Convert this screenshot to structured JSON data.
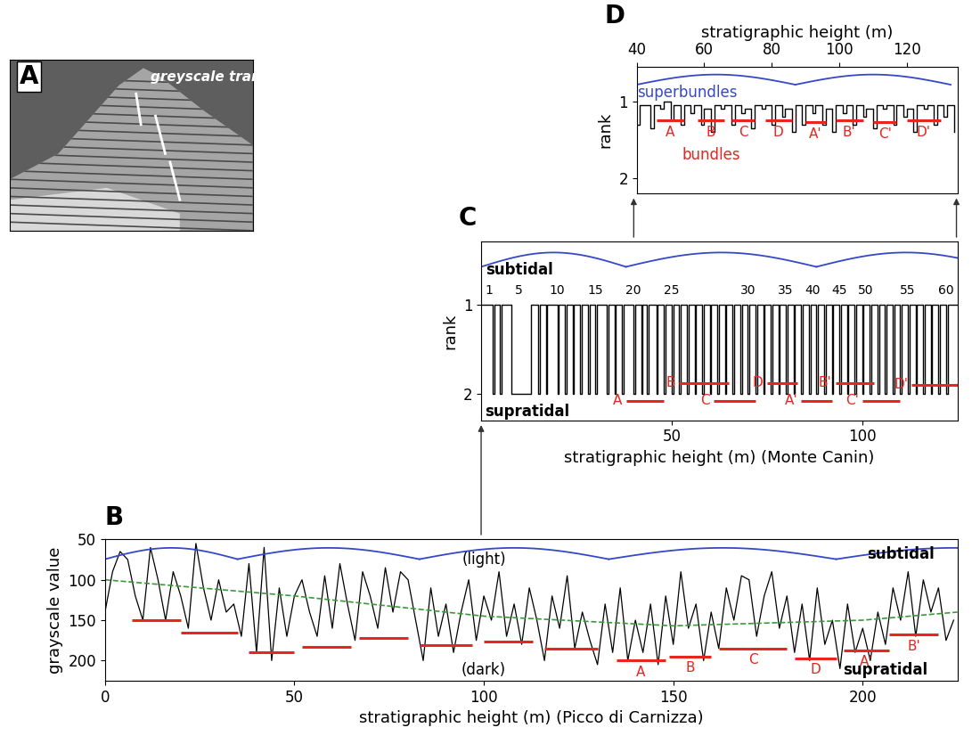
{
  "chart_data": [
    {
      "type": "image",
      "title": "A",
      "annotations": [
        {
          "text": "greyscale transects"
        }
      ]
    },
    {
      "type": "line",
      "title": "B",
      "xlabel": "stratigraphic height (m) (Picco di Carnizza)",
      "ylabel": "grayscale value",
      "xlim": [
        0,
        225
      ],
      "ylim": [
        225,
        50
      ],
      "xticks": [
        0,
        50,
        100,
        150,
        200
      ],
      "yticks": [
        50,
        100,
        150,
        200
      ],
      "color": "#000000",
      "x": [
        0,
        2,
        4,
        6,
        8,
        10,
        12,
        14,
        16,
        18,
        20,
        22,
        24,
        26,
        28,
        30,
        32,
        34,
        36,
        38,
        40,
        42,
        44,
        46,
        48,
        50,
        52,
        54,
        56,
        58,
        60,
        62,
        64,
        66,
        68,
        70,
        72,
        74,
        76,
        78,
        80,
        82,
        84,
        86,
        88,
        90,
        92,
        94,
        96,
        98,
        100,
        102,
        104,
        106,
        108,
        110,
        112,
        114,
        116,
        118,
        120,
        122,
        124,
        126,
        128,
        130,
        132,
        134,
        136,
        138,
        140,
        142,
        144,
        146,
        148,
        150,
        152,
        154,
        156,
        158,
        160,
        162,
        164,
        166,
        168,
        170,
        172,
        174,
        176,
        178,
        180,
        182,
        184,
        186,
        188,
        190,
        192,
        194,
        196,
        198,
        200,
        202,
        204,
        206,
        208,
        210,
        212,
        214,
        216,
        218,
        220,
        222,
        224
      ],
      "values": [
        140,
        90,
        65,
        75,
        120,
        150,
        60,
        100,
        150,
        90,
        120,
        160,
        55,
        110,
        150,
        100,
        140,
        130,
        170,
        80,
        190,
        60,
        200,
        110,
        170,
        120,
        100,
        140,
        170,
        95,
        160,
        80,
        130,
        175,
        90,
        120,
        160,
        85,
        140,
        90,
        100,
        150,
        200,
        110,
        170,
        130,
        190,
        140,
        100,
        175,
        120,
        150,
        90,
        170,
        130,
        180,
        110,
        150,
        200,
        120,
        160,
        95,
        185,
        140,
        175,
        205,
        130,
        190,
        110,
        200,
        150,
        190,
        130,
        205,
        120,
        180,
        90,
        160,
        130,
        200,
        140,
        185,
        110,
        150,
        95,
        100,
        170,
        120,
        90,
        160,
        120,
        190,
        130,
        200,
        110,
        180,
        150,
        210,
        130,
        190,
        160,
        200,
        140,
        180,
        110,
        150,
        90,
        170,
        100,
        140,
        110,
        175,
        150
      ],
      "trend": {
        "color": "#3a9a3a",
        "line_style": "dashed",
        "x": [
          0,
          50,
          100,
          150,
          200,
          225
        ],
        "values": [
          100,
          120,
          145,
          157,
          150,
          140
        ]
      },
      "bundles": {
        "color": "#e8251e",
        "items": [
          {
            "x": [
              7,
              20
            ],
            "y": 150
          },
          {
            "x": [
              20,
              35
            ],
            "y": 165
          },
          {
            "x": [
              38,
              50
            ],
            "y": 190
          },
          {
            "x": [
              52,
              65
            ],
            "y": 183
          },
          {
            "x": [
              67,
              80
            ],
            "y": 172
          },
          {
            "x": [
              83,
              97
            ],
            "y": 181
          },
          {
            "x": [
              100,
              113
            ],
            "y": 176
          },
          {
            "x": [
              116,
              130
            ],
            "y": 185
          },
          {
            "label": "A",
            "x": [
              135,
              148
            ],
            "y": 200
          },
          {
            "label": "B",
            "x": [
              149,
              160
            ],
            "y": 195
          },
          {
            "label": "C",
            "x": [
              162,
              180
            ],
            "y": 185
          },
          {
            "label": "D",
            "x": [
              182,
              193
            ],
            "y": 197
          },
          {
            "label": "A'",
            "x": [
              195,
              207
            ],
            "y": 187
          },
          {
            "label": "B'",
            "x": [
              207,
              220
            ],
            "y": 168
          }
        ]
      },
      "superbundles": {
        "color": "#3548c8",
        "spans": [
          [
            0,
            35
          ],
          [
            35,
            83
          ],
          [
            83,
            133
          ],
          [
            133,
            193
          ],
          [
            193,
            255
          ]
        ]
      },
      "annotations": [
        {
          "text": "(light)",
          "x": 100,
          "y": 75,
          "color": "#000000"
        },
        {
          "text": "(dark)",
          "x": 100,
          "y": 212,
          "color": "#000000"
        },
        {
          "text": "subtidal",
          "x": 210,
          "y": 68,
          "color": "#000000"
        },
        {
          "text": "supratidal",
          "x": 206,
          "y": 212,
          "color": "#000000"
        }
      ]
    },
    {
      "type": "step",
      "title": "C",
      "xlabel": "stratigraphic height (m) (Monte Canin)",
      "ylabel": "rank",
      "xlim": [
        0,
        125
      ],
      "ylim": [
        2.3,
        0.3
      ],
      "xticks": [
        50,
        100
      ],
      "yticks": [
        1,
        2
      ],
      "color": "#000000",
      "x": [
        0,
        3,
        3.4,
        5,
        5.4,
        8,
        13,
        15,
        15.4,
        17,
        17.4,
        20,
        20.4,
        22,
        22.4,
        24,
        24.4,
        26,
        26.4,
        28,
        28.4,
        30,
        30.4,
        33,
        33.4,
        35,
        35.4,
        37,
        37.4,
        40,
        40.4,
        42,
        42.4,
        43.5,
        43.9,
        46,
        46.4,
        48,
        48.4,
        50,
        50.4,
        52,
        52.4,
        54,
        54.4,
        56,
        56.4,
        58,
        58.4,
        60,
        60.4,
        62,
        62.4,
        64,
        64.4,
        66,
        66.4,
        68,
        68.4,
        70,
        70.4,
        72,
        72.4,
        74,
        74.4,
        76,
        76.4,
        78,
        78.4,
        80,
        80.4,
        82,
        82.4,
        84,
        84.4,
        86,
        86.4,
        88,
        88.4,
        90,
        90.4,
        92,
        92.4,
        94,
        94.4,
        96,
        96.4,
        98,
        98.4,
        100,
        100.4,
        102,
        102.4,
        104,
        104.4,
        106,
        106.4,
        108,
        108.4,
        110,
        110.4,
        112,
        112.4,
        114,
        114.4,
        116,
        116.4,
        118,
        118.4,
        120,
        120.4,
        122,
        122.4,
        125
      ],
      "values": [
        1,
        2,
        1,
        2,
        1,
        2,
        1,
        2,
        1,
        2,
        1,
        2,
        1,
        2,
        1,
        2,
        1,
        2,
        1,
        2,
        1,
        2,
        1,
        2,
        1,
        2,
        1,
        2,
        1,
        2,
        1,
        2,
        1,
        2,
        1,
        2,
        1,
        2,
        1,
        2,
        1,
        2,
        1,
        2,
        1,
        2,
        1,
        2,
        1,
        2,
        1,
        2,
        1,
        2,
        1,
        2,
        1,
        2,
        1,
        2,
        1,
        2,
        1,
        2,
        1,
        2,
        1,
        2,
        1,
        2,
        1,
        2,
        1,
        2,
        1,
        2,
        1,
        2,
        1,
        2,
        1,
        2,
        1,
        2,
        1,
        2,
        1,
        2,
        1,
        2,
        1,
        2,
        1,
        2,
        1,
        2,
        1,
        2,
        1,
        2,
        1,
        2,
        1,
        2,
        1,
        2,
        1,
        2,
        1,
        2,
        1,
        2,
        1,
        1
      ],
      "bundles": {
        "color": "#e8251e",
        "items": [
          {
            "label": "A",
            "x": [
              38,
              48
            ],
            "y": 2.08
          },
          {
            "label": "B",
            "x": [
              52,
              65
            ],
            "y": 1.88
          },
          {
            "label": "C",
            "x": [
              61,
              72
            ],
            "y": 2.08
          },
          {
            "label": "D",
            "x": [
              75,
              83
            ],
            "y": 1.88
          },
          {
            "label": "A'",
            "x": [
              84,
              92
            ],
            "y": 2.08
          },
          {
            "label": "B'",
            "x": [
              93,
              103
            ],
            "y": 1.88
          },
          {
            "label": "C'",
            "x": [
              100,
              110
            ],
            "y": 2.08
          },
          {
            "label": "D'",
            "x": [
              113,
              125
            ],
            "y": 1.9
          }
        ]
      },
      "superbundles": {
        "color": "#3548c8",
        "spans": [
          [
            0,
            38
          ],
          [
            38,
            88
          ],
          [
            88,
            135
          ]
        ]
      },
      "annotations": [
        {
          "text": "subtidal",
          "x": 10,
          "y": 0.62,
          "color": "#000000"
        },
        {
          "text": "supratidal",
          "x": 12,
          "y": 2.2,
          "color": "#000000"
        },
        {
          "text": "1",
          "x": 2,
          "y": 0.85,
          "color": "#000000"
        },
        {
          "text": "5",
          "x": 10,
          "y": 0.85,
          "color": "#000000"
        },
        {
          "text": "10",
          "x": 20,
          "y": 0.85,
          "color": "#000000"
        },
        {
          "text": "15",
          "x": 30,
          "y": 0.85,
          "color": "#000000"
        },
        {
          "text": "20",
          "x": 40,
          "y": 0.85,
          "color": "#000000"
        },
        {
          "text": "25",
          "x": 50,
          "y": 0.85,
          "color": "#000000"
        },
        {
          "text": "30",
          "x": 70,
          "y": 0.85,
          "color": "#000000"
        },
        {
          "text": "35",
          "x": 80,
          "y": 0.85,
          "color": "#000000"
        },
        {
          "text": "40",
          "x": 87,
          "y": 0.85,
          "color": "#000000"
        },
        {
          "text": "45",
          "x": 94,
          "y": 0.85,
          "color": "#000000"
        },
        {
          "text": "50",
          "x": 101,
          "y": 0.85,
          "color": "#000000"
        },
        {
          "text": "55",
          "x": 112,
          "y": 0.85,
          "color": "#000000"
        },
        {
          "text": "60",
          "x": 122,
          "y": 0.85,
          "color": "#000000"
        }
      ]
    },
    {
      "type": "step",
      "title": "D",
      "xlabel": "stratigraphic height (m)",
      "ylabel": "rank",
      "xlim": [
        40,
        135
      ],
      "ylim": [
        2.2,
        0.55
      ],
      "xticks": [
        40,
        60,
        80,
        100,
        120
      ],
      "yticks": [
        1,
        2
      ],
      "color": "#000000",
      "x": [
        40,
        41,
        44,
        45,
        47,
        48,
        50,
        51,
        53,
        54,
        56,
        57,
        59,
        60,
        62,
        63,
        65,
        66,
        68,
        69,
        71,
        72,
        74,
        75,
        77,
        78,
        80,
        81,
        83,
        84,
        86,
        87,
        89,
        90,
        92,
        93,
        95,
        96,
        98,
        99,
        101,
        102,
        104,
        105,
        107,
        108,
        110,
        111,
        113,
        114,
        116,
        117,
        119,
        120,
        122,
        123,
        125,
        126,
        128,
        129,
        131,
        132,
        134
      ],
      "values": [
        1.3,
        1.05,
        1.35,
        1.05,
        1.1,
        1.0,
        1.25,
        1.05,
        1.3,
        1.05,
        1.15,
        1.05,
        1.3,
        1.1,
        1.4,
        1.05,
        1.1,
        1.05,
        1.3,
        1.05,
        1.15,
        1.1,
        1.35,
        1.05,
        1.1,
        1.05,
        1.3,
        1.05,
        1.2,
        1.1,
        1.4,
        1.05,
        1.3,
        1.05,
        1.15,
        1.05,
        1.3,
        1.1,
        1.4,
        1.05,
        1.15,
        1.05,
        1.3,
        1.05,
        1.2,
        1.1,
        1.35,
        1.05,
        1.1,
        1.05,
        1.3,
        1.05,
        1.2,
        1.1,
        1.4,
        1.05,
        1.1,
        1.05,
        1.3,
        1.05,
        1.2,
        1.05,
        1.4
      ],
      "bundles": {
        "color": "#e8251e",
        "items": [
          {
            "label": "A",
            "x": [
              46,
              54
            ],
            "y": 1.25
          },
          {
            "label": "B",
            "x": [
              58,
              66
            ],
            "y": 1.25
          },
          {
            "label": "C",
            "x": [
              68,
              75
            ],
            "y": 1.25
          },
          {
            "label": "D",
            "x": [
              78,
              86
            ],
            "y": 1.25
          },
          {
            "label": "A'",
            "x": [
              90,
              96
            ],
            "y": 1.27
          },
          {
            "label": "B'",
            "x": [
              99,
              107
            ],
            "y": 1.25
          },
          {
            "label": "C'",
            "x": [
              110,
              117
            ],
            "y": 1.27
          },
          {
            "label": "D'",
            "x": [
              120,
              130
            ],
            "y": 1.25
          }
        ]
      },
      "superbundles": {
        "color": "#3548c8",
        "spans": [
          [
            40,
            87
          ],
          [
            87,
            133
          ]
        ]
      },
      "annotations": [
        {
          "text": "superbundles",
          "x": 55,
          "y": 0.88,
          "color": "#3548c8"
        },
        {
          "text": "bundles",
          "x": 62,
          "y": 1.7,
          "color": "#e8251e"
        }
      ]
    }
  ]
}
